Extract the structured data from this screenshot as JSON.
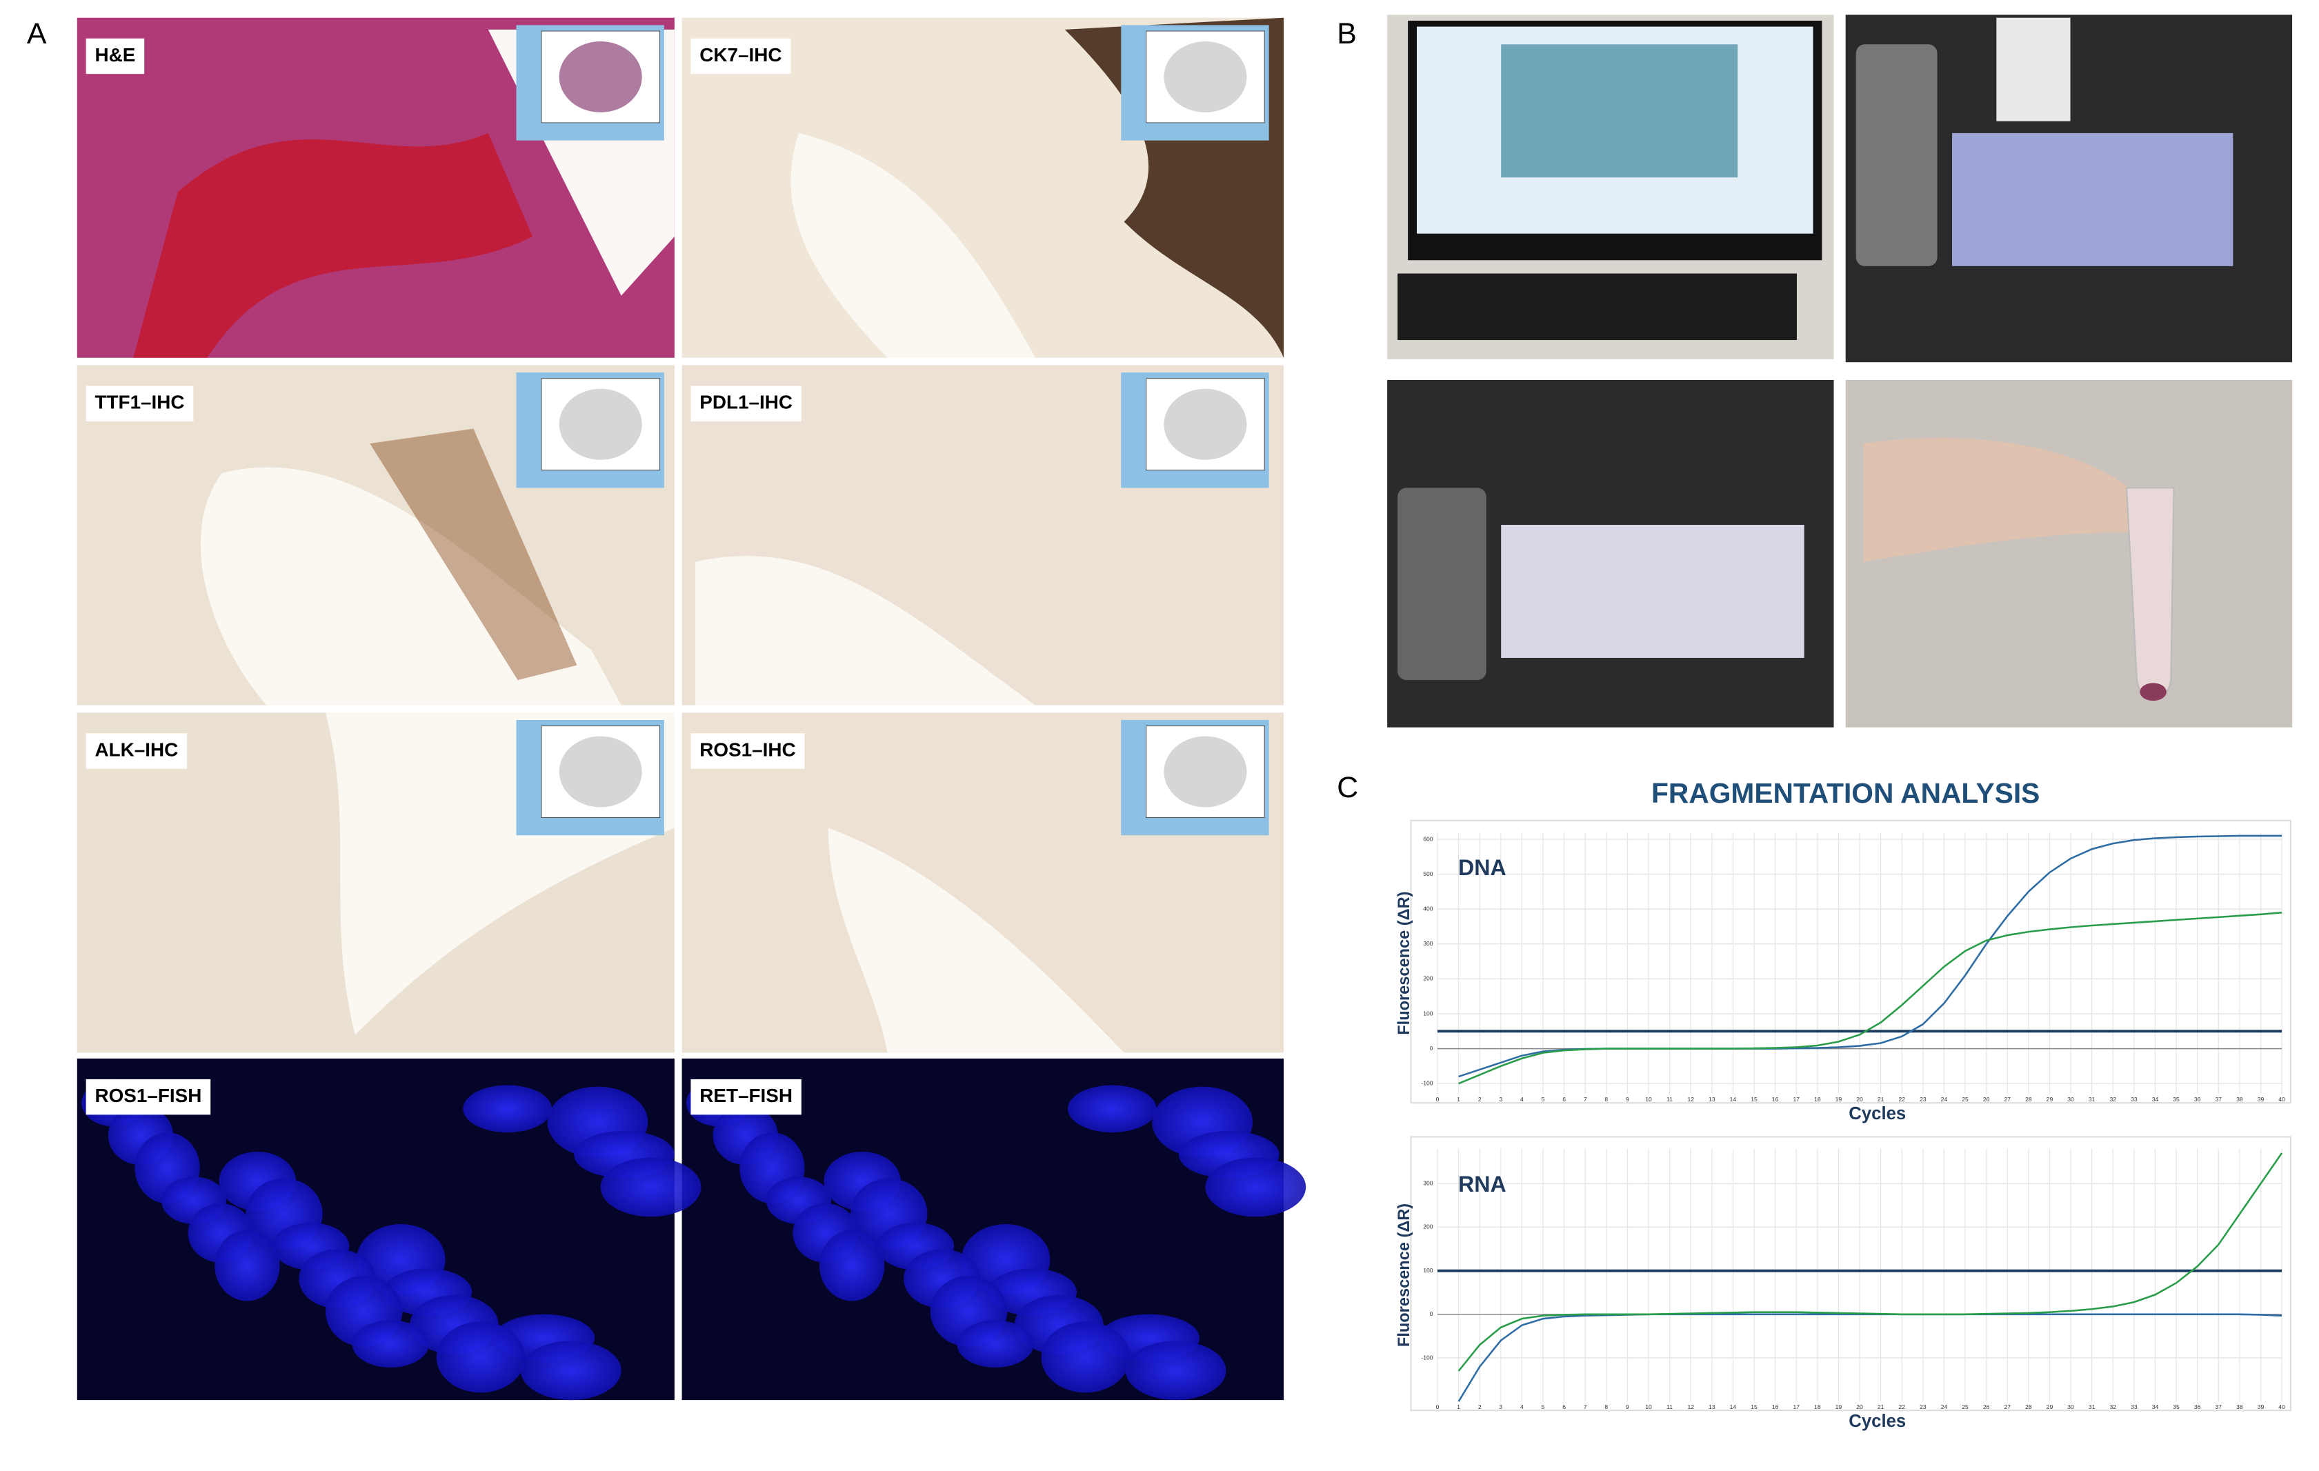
{
  "panel_labels": [
    "A",
    "B",
    "C"
  ],
  "tiles": [
    "H&E",
    "CK7–IHC",
    "TTF1–IHC",
    "PDL1–IHC",
    "ALK–IHC",
    "ROS1–IHC",
    "ROS1–FISH",
    "RET–FISH"
  ],
  "panel_c_title": "FRAGMENTATION ANALYSIS",
  "chart_data": [
    {
      "type": "line",
      "title": "DNA",
      "x_label": "Cycles",
      "y_label": "Fluorescence (ΔR)",
      "x": [
        1,
        2,
        3,
        4,
        5,
        6,
        7,
        8,
        9,
        10,
        11,
        12,
        13,
        14,
        15,
        16,
        17,
        18,
        19,
        20,
        21,
        22,
        23,
        24,
        25,
        26,
        27,
        28,
        29,
        30,
        31,
        32,
        33,
        34,
        35,
        36,
        37,
        38,
        39,
        40
      ],
      "series": [
        {
          "color": "#2e6da4",
          "values": [
            -80,
            -60,
            -40,
            -20,
            -8,
            -3,
            -1,
            0,
            0,
            0,
            0,
            0,
            0,
            0,
            0,
            0,
            1,
            2,
            4,
            8,
            16,
            35,
            70,
            130,
            210,
            300,
            380,
            450,
            505,
            545,
            572,
            588,
            598,
            603,
            606,
            608,
            609,
            610,
            610,
            610
          ]
        },
        {
          "color": "#2a9d4a",
          "values": [
            -100,
            -75,
            -50,
            -28,
            -12,
            -5,
            -2,
            0,
            0,
            0,
            0,
            0,
            0,
            0,
            1,
            2,
            4,
            9,
            20,
            40,
            75,
            125,
            180,
            235,
            280,
            310,
            325,
            335,
            342,
            348,
            353,
            357,
            361,
            365,
            369,
            373,
            377,
            381,
            385,
            390
          ]
        }
      ],
      "threshold": 50,
      "threshold_color": "#1b3a5c",
      "xlim": [
        0,
        40
      ],
      "xticks": [
        0,
        1,
        2,
        3,
        4,
        5,
        6,
        7,
        8,
        9,
        10,
        11,
        12,
        13,
        14,
        15,
        16,
        17,
        18,
        19,
        20,
        21,
        22,
        23,
        24,
        25,
        26,
        27,
        28,
        29,
        30,
        31,
        32,
        33,
        34,
        35,
        36,
        37,
        38,
        39,
        40
      ],
      "ylim": [
        -130,
        620
      ],
      "yticks": [
        -100,
        0,
        100,
        200,
        300,
        400,
        500,
        600
      ],
      "grid": true
    },
    {
      "type": "line",
      "title": "RNA",
      "x_label": "Cycles",
      "y_label": "Fluorescence (ΔR)",
      "x": [
        1,
        2,
        3,
        4,
        5,
        6,
        7,
        8,
        9,
        10,
        11,
        12,
        13,
        14,
        15,
        16,
        17,
        18,
        19,
        20,
        21,
        22,
        23,
        24,
        25,
        26,
        27,
        28,
        29,
        30,
        31,
        32,
        33,
        34,
        35,
        36,
        37,
        38,
        39,
        40
      ],
      "series": [
        {
          "color": "#2e6da4",
          "values": [
            -200,
            -120,
            -60,
            -25,
            -10,
            -5,
            -3,
            -2,
            -1,
            0,
            0,
            0,
            0,
            0,
            0,
            0,
            0,
            0,
            0,
            0,
            0,
            0,
            0,
            0,
            0,
            0,
            0,
            0,
            0,
            0,
            0,
            0,
            0,
            0,
            0,
            0,
            0,
            0,
            -1,
            -3
          ]
        },
        {
          "color": "#2a9d4a",
          "values": [
            -130,
            -70,
            -30,
            -10,
            -3,
            -1,
            0,
            0,
            0,
            0,
            1,
            2,
            3,
            4,
            5,
            5,
            5,
            4,
            3,
            2,
            1,
            0,
            0,
            0,
            0,
            1,
            2,
            3,
            5,
            8,
            12,
            18,
            28,
            45,
            72,
            110,
            160,
            230,
            300,
            370
          ]
        }
      ],
      "threshold": 100,
      "threshold_color": "#1b3a5c",
      "xlim": [
        0,
        40
      ],
      "xticks": [
        0,
        1,
        2,
        3,
        4,
        5,
        6,
        7,
        8,
        9,
        10,
        11,
        12,
        13,
        14,
        15,
        16,
        17,
        18,
        19,
        20,
        21,
        22,
        23,
        24,
        25,
        26,
        27,
        28,
        29,
        30,
        31,
        32,
        33,
        34,
        35,
        36,
        37,
        38,
        39,
        40
      ],
      "ylim": [
        -200,
        380
      ],
      "yticks": [
        -100,
        0,
        100,
        200,
        300
      ],
      "grid": true
    }
  ]
}
